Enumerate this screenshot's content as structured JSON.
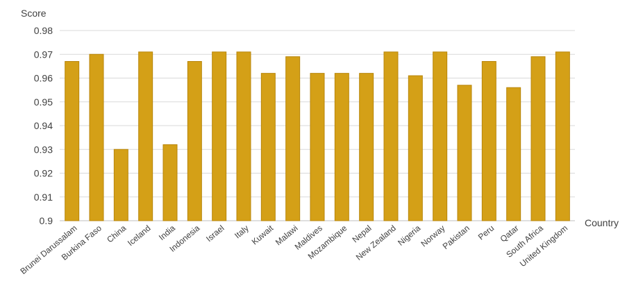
{
  "chart_data": {
    "type": "bar",
    "title": "",
    "xlabel": "Country",
    "ylabel": "Score",
    "ylim": [
      0.9,
      0.98
    ],
    "y_ticks": [
      "0.9",
      "0.91",
      "0.92",
      "0.93",
      "0.94",
      "0.95",
      "0.96",
      "0.97",
      "0.98"
    ],
    "grid": true,
    "legend": "none",
    "bar_color": "#D4A017",
    "bar_edge_color": "#B8860B",
    "grid_color": "#D9D9D9",
    "categories": [
      "Brunei Darussalam",
      "Burkina Faso",
      "China",
      "Iceland",
      "India",
      "Indonesia",
      "Israel",
      "Italy",
      "Kuwait",
      "Malawi",
      "Maldives",
      "Mozambique",
      "Nepal",
      "New Zealand",
      "Nigeria",
      "Norway",
      "Pakistan",
      "Peru",
      "Qatar",
      "South Africa",
      "United Kingdom"
    ],
    "values": [
      0.967,
      0.97,
      0.93,
      0.971,
      0.932,
      0.967,
      0.971,
      0.971,
      0.962,
      0.969,
      0.962,
      0.962,
      0.962,
      0.971,
      0.961,
      0.971,
      0.957,
      0.967,
      0.956,
      0.969,
      0.971
    ]
  }
}
